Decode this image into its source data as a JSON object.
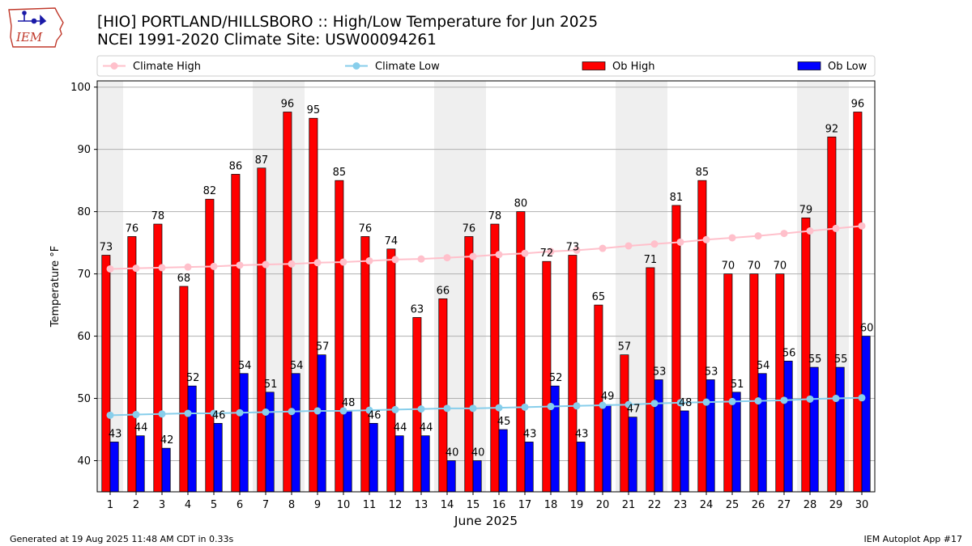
{
  "header": {
    "title_line1": "[HIO] PORTLAND/HILLSBORO :: High/Low Temperature for Jun 2025",
    "title_line2": "NCEI 1991-2020 Climate Site: USW00094261"
  },
  "logo": {
    "text": "IEM",
    "icon": "iem-iowa-logo"
  },
  "footer": {
    "generated": "Generated at 19 Aug 2025 11:48 AM CDT in 0.33s",
    "app": "IEM Autoplot App #17"
  },
  "colors": {
    "ob_high": "#ff0000",
    "ob_low": "#0000ff",
    "climate_high": "#ffc0cb",
    "climate_low": "#87ceeb",
    "weekend_shade": "#efefef",
    "grid": "#b0b0b0"
  },
  "chart_data": {
    "type": "bar",
    "xlabel": "June 2025",
    "ylabel": "Temperature °F",
    "ylim": [
      35,
      101
    ],
    "yticks": [
      40,
      50,
      60,
      70,
      80,
      90,
      100
    ],
    "grid": "horizontal",
    "legend_placement": "top, above plot",
    "categories": [
      "1",
      "2",
      "3",
      "4",
      "5",
      "6",
      "7",
      "8",
      "9",
      "10",
      "11",
      "12",
      "13",
      "14",
      "15",
      "16",
      "17",
      "18",
      "19",
      "20",
      "21",
      "22",
      "23",
      "24",
      "25",
      "26",
      "27",
      "28",
      "29",
      "30"
    ],
    "weekend_days": [
      1,
      7,
      8,
      14,
      15,
      21,
      22,
      28,
      29
    ],
    "series": [
      {
        "name": "Ob High",
        "kind": "bar",
        "values": [
          73,
          76,
          78,
          68,
          82,
          86,
          87,
          96,
          95,
          85,
          76,
          74,
          63,
          66,
          76,
          78,
          80,
          72,
          73,
          65,
          57,
          71,
          81,
          85,
          70,
          70,
          70,
          79,
          92,
          96
        ]
      },
      {
        "name": "Ob Low",
        "kind": "bar",
        "values": [
          43,
          44,
          42,
          52,
          46,
          54,
          51,
          54,
          57,
          48,
          46,
          44,
          44,
          40,
          40,
          45,
          43,
          52,
          43,
          49,
          47,
          53,
          48,
          53,
          51,
          54,
          56,
          55,
          55,
          60
        ]
      },
      {
        "name": "Climate High",
        "kind": "line",
        "values": [
          70.8,
          70.9,
          71.0,
          71.1,
          71.2,
          71.4,
          71.5,
          71.6,
          71.8,
          71.9,
          72.1,
          72.3,
          72.4,
          72.6,
          72.8,
          73.1,
          73.3,
          73.6,
          73.8,
          74.1,
          74.5,
          74.8,
          75.1,
          75.5,
          75.8,
          76.1,
          76.5,
          76.9,
          77.3,
          77.7
        ]
      },
      {
        "name": "Climate Low",
        "kind": "line",
        "values": [
          47.3,
          47.4,
          47.5,
          47.6,
          47.6,
          47.7,
          47.8,
          47.9,
          48.0,
          48.0,
          48.1,
          48.2,
          48.3,
          48.4,
          48.4,
          48.5,
          48.6,
          48.7,
          48.8,
          48.9,
          49.0,
          49.2,
          49.3,
          49.4,
          49.5,
          49.6,
          49.7,
          49.9,
          50.0,
          50.1
        ]
      }
    ]
  }
}
